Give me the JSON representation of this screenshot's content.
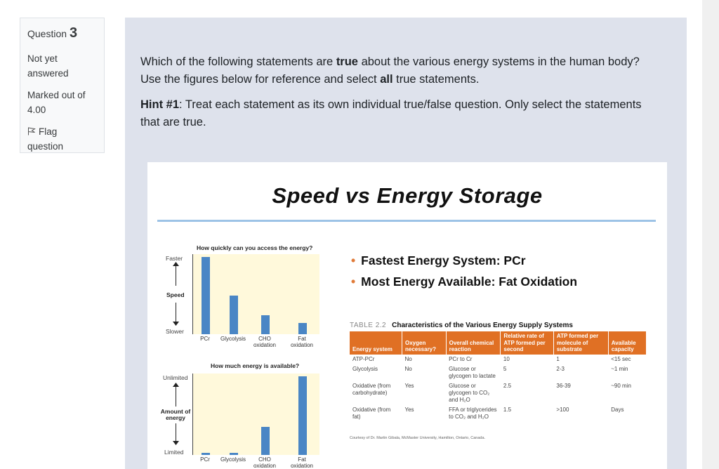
{
  "info": {
    "question_label": "Question",
    "question_number": "3",
    "status_line1": "Not yet",
    "status_line2": "answered",
    "marked_line1": "Marked out of",
    "marked_line2": "4.00",
    "flag_line1": "Flag",
    "flag_line2": "question"
  },
  "question": {
    "p1_a": "Which of the following statements are ",
    "p1_b": "true",
    "p1_c": " about the various energy systems in the human body? Use the figures below for reference and select ",
    "p1_d": "all",
    "p1_e": " true statements.",
    "hint_label": "Hint #1",
    "hint_text": ": Treat each statement as its own individual true/false question. Only select the statements that are true."
  },
  "figure": {
    "title": "Speed vs Energy Storage",
    "bullet1": "Fastest Energy System: PCr",
    "bullet2": "Most Energy Available: Fat Oxidation",
    "table_number": "TABLE 2.2",
    "table_title": "Characteristics of the Various Energy Supply Systems",
    "table_headers": [
      "Energy system",
      "Oxygen necessary?",
      "Overall chemical reaction",
      "Relative rate of ATP formed per second",
      "ATP formed per molecule of substrate",
      "Available capacity"
    ],
    "table_rows": [
      [
        "ATP-PCr",
        "No",
        "PCr to Cr",
        "10",
        "1",
        "<15 sec"
      ],
      [
        "Glycolysis",
        "No",
        "Glucose or glycogen to lactate",
        "5",
        "2-3",
        "~1 min"
      ],
      [
        "Oxidative (from carbohydrate)",
        "Yes",
        "Glucose or glycogen to CO₂ and H₂O",
        "2.5",
        "36-39",
        "~90 min"
      ],
      [
        "Oxidative (from fat)",
        "Yes",
        "FFA or triglycerides to CO₂ and H₂O",
        "1.5",
        ">100",
        "Days"
      ]
    ],
    "courtesy": "Courtesy of Dr. Martin Gibala, McMaster University, Hamilton, Ontario, Canada."
  },
  "chart_data": [
    {
      "type": "bar",
      "title": "How quickly can you access the energy?",
      "categories": [
        "PCr",
        "Glycolysis",
        "CHO oxidation",
        "Fat oxidation"
      ],
      "values": [
        10,
        5,
        2.5,
        1.5
      ],
      "ylabel": "Speed",
      "y_top_label": "Faster",
      "y_bottom_label": "Slower",
      "ylim": [
        0,
        10
      ]
    },
    {
      "type": "bar",
      "title": "How much energy is available?",
      "categories": [
        "PCr",
        "Glycolysis",
        "CHO oxidation",
        "Fat oxidation"
      ],
      "values": [
        0.3,
        0.3,
        3.6,
        10
      ],
      "ylabel": "Amount of energy",
      "y_top_label": "Unlimited",
      "y_bottom_label": "Limited",
      "ylim": [
        0,
        10
      ]
    }
  ],
  "colors": {
    "accent": "#e07024",
    "bar": "#4a86c5",
    "plot_bg": "#fff9db",
    "question_bg": "#dee2ec"
  }
}
